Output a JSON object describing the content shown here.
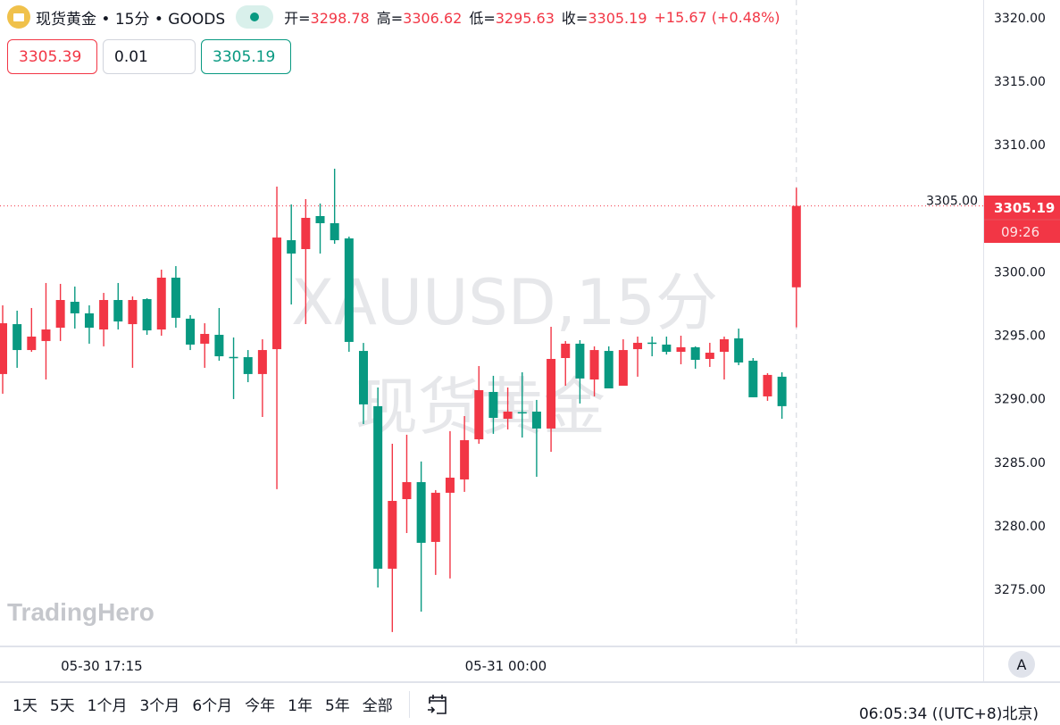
{
  "header": {
    "symbol_icon": "gold-bars-icon",
    "title": "现货黄金 • 15分 • GOODS",
    "market_status": "open",
    "ohlc": [
      {
        "label": "开=",
        "value": "3298.78"
      },
      {
        "label": "高=",
        "value": "3306.62"
      },
      {
        "label": "低=",
        "value": "3295.63"
      },
      {
        "label": "收=",
        "value": "3305.19"
      }
    ],
    "change": "+15.67 (+0.48%)"
  },
  "trade": {
    "sell": "3305.39",
    "quantity": "0.01",
    "buy": "3305.19"
  },
  "watermark": {
    "line1": "XAUUSD,15分",
    "line2": "现货黄金"
  },
  "logo": "TradingHero",
  "price_label": {
    "price": "3305.19",
    "countdown": "09:26"
  },
  "auto_scale_button": "A",
  "ranges": [
    "1天",
    "5天",
    "1个月",
    "3个月",
    "6个月",
    "今年",
    "1年",
    "5年",
    "全部"
  ],
  "goto_date_icon": "calendar-goto-icon",
  "clock": "06:05:34 ((UTC+8)北京)",
  "colors": {
    "up": "#F23645",
    "down": "#089981",
    "grid": "#E0E3EB"
  },
  "chart_data": {
    "type": "candlestick",
    "interval": "15分",
    "ylim": [
      3270.5,
      3321.5
    ],
    "y_ticks": [
      "3320.00",
      "3315.00",
      "3310.00",
      "3305.00",
      "3300.00",
      "3295.00",
      "3290.00",
      "3285.00",
      "3280.00",
      "3275.00"
    ],
    "x_tick_labels": [
      {
        "label": "05-30 17:15",
        "index": 7
      },
      {
        "label": "05-31 00:00",
        "index": 35
      }
    ],
    "grid": false,
    "last_price_line": 3305.19,
    "candles": [
      [
        3291.95,
        3297.36,
        3290.4,
        3295.95
      ],
      [
        3295.88,
        3296.94,
        3292.44,
        3293.84
      ],
      [
        3293.84,
        3297.15,
        3293.7,
        3294.9
      ],
      [
        3294.55,
        3299.12,
        3291.52,
        3295.46
      ],
      [
        3295.6,
        3299.05,
        3294.55,
        3297.78
      ],
      [
        3297.64,
        3298.84,
        3295.53,
        3296.73
      ],
      [
        3296.73,
        3297.36,
        3294.34,
        3295.6
      ],
      [
        3295.46,
        3298.34,
        3294.13,
        3297.78
      ],
      [
        3297.78,
        3299.12,
        3295.46,
        3296.09
      ],
      [
        3295.88,
        3298.06,
        3292.44,
        3297.78
      ],
      [
        3297.85,
        3297.92,
        3295.04,
        3295.39
      ],
      [
        3295.46,
        3300.17,
        3294.97,
        3299.54
      ],
      [
        3299.54,
        3300.45,
        3295.6,
        3296.38
      ],
      [
        3296.31,
        3296.59,
        3293.84,
        3294.27
      ],
      [
        3294.34,
        3295.95,
        3292.44,
        3295.11
      ],
      [
        3295.04,
        3297.15,
        3293.0,
        3293.35
      ],
      [
        3293.3,
        3294.83,
        3289.98,
        3293.28
      ],
      [
        3293.28,
        3293.84,
        3291.31,
        3291.95
      ],
      [
        3291.95,
        3294.69,
        3288.57,
        3293.84
      ],
      [
        3293.91,
        3306.71,
        3282.88,
        3302.7
      ],
      [
        3302.49,
        3305.31,
        3297.43,
        3301.44
      ],
      [
        3301.79,
        3305.73,
        3295.88,
        3304.25
      ],
      [
        3304.39,
        3305.38,
        3301.44,
        3303.83
      ],
      [
        3303.83,
        3308.12,
        3302.21,
        3302.49
      ],
      [
        3302.63,
        3302.77,
        3293.7,
        3294.48
      ],
      [
        3293.77,
        3294.4,
        3288.01,
        3289.56
      ],
      [
        3289.42,
        3290.89,
        3275.14,
        3276.62
      ],
      [
        3276.62,
        3286.46,
        3271.63,
        3281.96
      ],
      [
        3282.1,
        3287.17,
        3279.43,
        3283.44
      ],
      [
        3283.44,
        3285.06,
        3273.24,
        3278.66
      ],
      [
        3278.73,
        3282.81,
        3276.13,
        3282.6
      ],
      [
        3282.6,
        3287.45,
        3275.85,
        3283.79
      ],
      [
        3283.65,
        3288.64,
        3282.67,
        3286.74
      ],
      [
        3286.81,
        3292.58,
        3286.46,
        3290.68
      ],
      [
        3290.54,
        3291.81,
        3287.24,
        3288.5
      ],
      [
        3288.43,
        3290.89,
        3287.59,
        3288.99
      ],
      [
        3288.95,
        3292.09,
        3286.95,
        3288.92
      ],
      [
        3288.99,
        3289.91,
        3283.86,
        3287.66
      ],
      [
        3287.66,
        3295.67,
        3285.83,
        3293.14
      ],
      [
        3293.21,
        3294.55,
        3291.03,
        3294.34
      ],
      [
        3294.34,
        3294.62,
        3289.63,
        3291.6
      ],
      [
        3291.52,
        3294.13,
        3290.19,
        3293.84
      ],
      [
        3293.77,
        3294.13,
        3290.82,
        3290.82
      ],
      [
        3291.03,
        3294.69,
        3291.03,
        3293.84
      ],
      [
        3293.91,
        3294.9,
        3291.74,
        3294.41
      ],
      [
        3294.43,
        3294.9,
        3293.35,
        3294.41
      ],
      [
        3294.27,
        3294.9,
        3293.49,
        3293.7
      ],
      [
        3293.7,
        3294.97,
        3292.72,
        3294.06
      ],
      [
        3294.06,
        3294.13,
        3292.37,
        3293.07
      ],
      [
        3293.14,
        3294.41,
        3292.51,
        3293.63
      ],
      [
        3293.7,
        3294.9,
        3291.52,
        3294.69
      ],
      [
        3294.76,
        3295.53,
        3292.65,
        3292.86
      ],
      [
        3293.0,
        3293.21,
        3290.12,
        3290.12
      ],
      [
        3290.19,
        3292.02,
        3289.84,
        3291.88
      ],
      [
        3291.74,
        3292.09,
        3288.43,
        3289.42
      ],
      [
        3298.78,
        3306.62,
        3295.63,
        3305.19
      ]
    ]
  }
}
